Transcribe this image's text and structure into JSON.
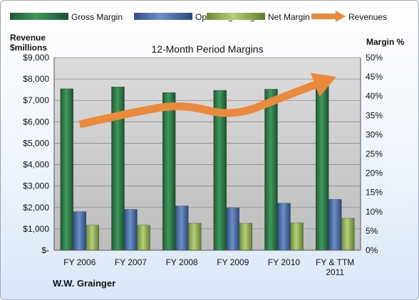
{
  "chart_data": {
    "type": "bar",
    "title": "12-Month Period Margins",
    "company": "W.W. Grainger",
    "y_left_label_line1": "Revenue",
    "y_left_label_line2": "$millions",
    "y_right_label": "Margin %",
    "categories": [
      [
        "FY 2006"
      ],
      [
        "FY 2007"
      ],
      [
        "FY 2008"
      ],
      [
        "FY 2009"
      ],
      [
        "FY 2010"
      ],
      [
        "FY & TTM",
        "2011"
      ]
    ],
    "left_ylim": [
      0,
      9000
    ],
    "right_ylim": [
      0,
      50
    ],
    "left_ticks": [
      "$-",
      "$1,000",
      "$2,000",
      "$3,000",
      "$4,000",
      "$5,000",
      "$6,000",
      "$7,000",
      "$8,000",
      "$9,000"
    ],
    "right_ticks": [
      "0%",
      "5%",
      "10%",
      "15%",
      "20%",
      "25%",
      "30%",
      "35%",
      "40%",
      "45%",
      "50%"
    ],
    "legend": [
      {
        "name": "Gross Margin",
        "kind": "bar",
        "color": "#2e7d4a"
      },
      {
        "name": "Operating Margin",
        "kind": "bar",
        "color": "#4a6fa8"
      },
      {
        "name": "Net Margin",
        "kind": "bar",
        "color": "#8fae55"
      },
      {
        "name": "Revenues",
        "kind": "arrow",
        "color": "#ea8a3c"
      }
    ],
    "series": [
      {
        "name": "Gross Margin",
        "axis": "right",
        "values": [
          41.9,
          42.4,
          40.9,
          41.5,
          41.8,
          43.2
        ]
      },
      {
        "name": "Operating Margin",
        "axis": "right",
        "values": [
          10.0,
          10.6,
          11.5,
          11.0,
          12.2,
          13.2
        ]
      },
      {
        "name": "Net Margin",
        "axis": "right",
        "values": [
          6.5,
          6.5,
          7.0,
          7.0,
          7.1,
          8.3
        ]
      },
      {
        "name": "Revenues",
        "axis": "left",
        "values": [
          5880,
          6420,
          6850,
          6220,
          7180,
          8080
        ]
      }
    ],
    "grid": true,
    "legend_position": "top"
  }
}
